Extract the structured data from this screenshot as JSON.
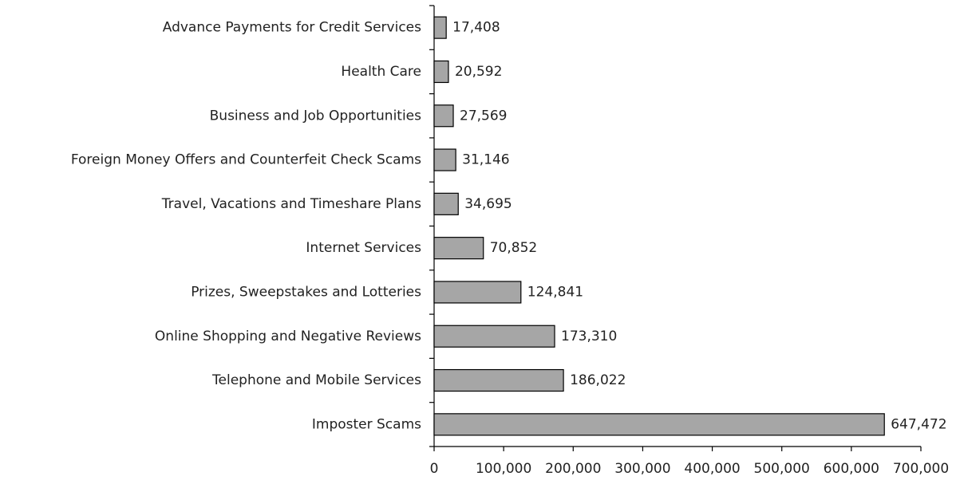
{
  "chart_data": {
    "type": "barh",
    "categories": [
      "Advance Payments for Credit Services",
      "Health Care",
      "Business and Job Opportunities",
      "Foreign Money Offers and Counterfeit Check Scams",
      "Travel, Vacations and Timeshare Plans",
      "Internet Services",
      "Prizes, Sweepstakes and Lotteries",
      "Online Shopping and Negative Reviews",
      "Telephone and Mobile Services",
      "Imposter Scams"
    ],
    "values": [
      17408,
      20592,
      27569,
      31146,
      34695,
      70852,
      124841,
      173310,
      186022,
      647472
    ],
    "value_labels": [
      "17,408",
      "20,592",
      "27,569",
      "31,146",
      "34,695",
      "70,852",
      "124,841",
      "173,310",
      "186,022",
      "647,472"
    ],
    "color": "#a6a6a6",
    "xlim": [
      0,
      700000
    ],
    "xticks": [
      0,
      {
        "value": 100000,
        "label": "100,000"
      },
      {
        "value": 200000,
        "label": "200,000"
      },
      {
        "value": 300000,
        "label": "300,000"
      },
      {
        "value": 400000,
        "label": "400,000"
      },
      {
        "value": 500000,
        "label": "500,000"
      },
      {
        "value": 600000,
        "label": "600,000"
      },
      {
        "value": 700000,
        "label": "700,000"
      }
    ],
    "grid": false
  }
}
